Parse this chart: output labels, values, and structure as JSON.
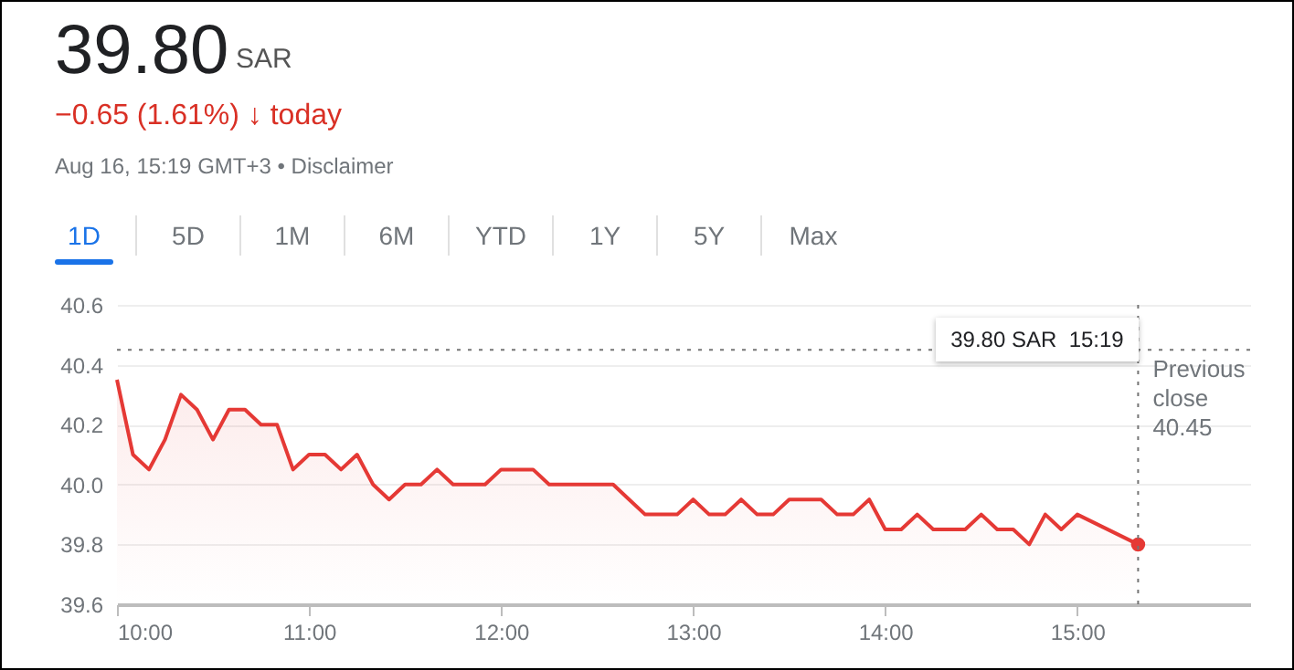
{
  "chart_data": {
    "type": "area",
    "title": "39.80",
    "annotations": [
      "SAR",
      "−0.65 (1.61%) ↓ today",
      "Aug 16, 15:19 GMT+3 • Disclaimer",
      "1D",
      "5D",
      "1M",
      "6M",
      "YTD",
      "1Y",
      "5Y",
      "Max",
      "39.80 SAR  15:19"
    ],
    "series": [
      {
        "color": "#e53935",
        "x": [
          10,
          10.0833,
          10.1667,
          10.25,
          10.3333,
          10.4167,
          10.5,
          10.5833,
          10.6667,
          10.75,
          10.8333,
          10.9167,
          11,
          11.0833,
          11.1667,
          11.25,
          11.3333,
          11.4167,
          11.5,
          11.5833,
          11.6667,
          11.75,
          11.8333,
          11.9167,
          12,
          12.0833,
          12.1667,
          12.25,
          12.3333,
          12.4167,
          12.5,
          12.5833,
          12.6667,
          12.75,
          12.8333,
          12.9167,
          13,
          13.0833,
          13.1667,
          13.25,
          13.3333,
          13.4167,
          13.5,
          13.5833,
          13.6667,
          13.75,
          13.8333,
          13.9167,
          14,
          14.0833,
          14.1667,
          14.25,
          14.3333,
          14.4167,
          14.5,
          14.5833,
          14.6667,
          14.75,
          14.8333,
          14.9167,
          15,
          15.3167
        ],
        "values": [
          40.35,
          40.1,
          40.05,
          40.15,
          40.3,
          40.25,
          40.15,
          40.25,
          40.25,
          40.2,
          40.2,
          40.05,
          40.1,
          40.1,
          40.05,
          40.1,
          40.0,
          39.95,
          40.0,
          40.0,
          40.05,
          40.0,
          40.0,
          40.0,
          40.05,
          40.05,
          40.05,
          40.0,
          40.0,
          40.0,
          40.0,
          40.0,
          39.95,
          39.9,
          39.9,
          39.9,
          39.95,
          39.9,
          39.9,
          39.95,
          39.9,
          39.9,
          39.95,
          39.95,
          39.95,
          39.9,
          39.9,
          39.95,
          39.85,
          39.85,
          39.9,
          39.85,
          39.85,
          39.85,
          39.9,
          39.85,
          39.85,
          39.8,
          39.9,
          39.85,
          39.9,
          39.8
        ]
      },
      {
        "type": "scatter",
        "color": "#e53935",
        "x": [
          15.3167
        ],
        "values": [
          39.8
        ]
      }
    ],
    "xlim": [
      10,
      15.9
    ],
    "xticks": [
      {
        "value": 10,
        "label": "10:00"
      },
      {
        "value": 11,
        "label": "11:00"
      },
      {
        "value": 12,
        "label": "12:00"
      },
      {
        "value": 13,
        "label": "13:00"
      },
      {
        "value": 14,
        "label": "14:00"
      },
      {
        "value": 15,
        "label": "15:00"
      }
    ],
    "ylim": [
      39.6,
      40.6
    ],
    "yticks": [
      39.6,
      39.8,
      {
        "value": 40,
        "label": "40.0"
      },
      40.2,
      40.4,
      40.6
    ],
    "ref_lines": [
      {
        "axis": "y",
        "value": 40.45,
        "label": "Previous close 40.45",
        "color": "#757575",
        "line_style": "dotted"
      },
      {
        "axis": "x",
        "value": 15.3167,
        "color": "#757575",
        "line_style": "dotted"
      }
    ],
    "grid": "y"
  }
}
